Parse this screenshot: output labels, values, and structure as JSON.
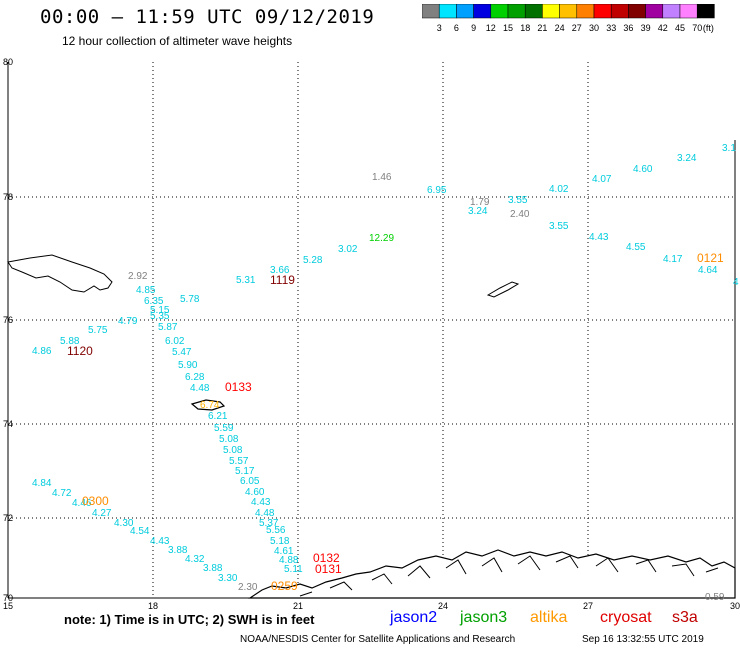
{
  "header": {
    "title": "00:00 — 11:59 UTC 09/12/2019",
    "subtitle": "12 hour collection of altimeter wave heights"
  },
  "color_scale": {
    "unit": "(ft)",
    "bins": [
      {
        "label": "3",
        "color": "#808080"
      },
      {
        "label": "6",
        "color": "#00e5ff"
      },
      {
        "label": "9",
        "color": "#00a0ff"
      },
      {
        "label": "12",
        "color": "#0000e0"
      },
      {
        "label": "15",
        "color": "#00d000"
      },
      {
        "label": "18",
        "color": "#00a000"
      },
      {
        "label": "21",
        "color": "#007000"
      },
      {
        "label": "24",
        "color": "#ffff00"
      },
      {
        "label": "27",
        "color": "#ffc000"
      },
      {
        "label": "30",
        "color": "#ff8000"
      },
      {
        "label": "33",
        "color": "#ff0000"
      },
      {
        "label": "36",
        "color": "#c00000"
      },
      {
        "label": "39",
        "color": "#800000"
      },
      {
        "label": "42",
        "color": "#a000a0"
      },
      {
        "label": "45",
        "color": "#c080ff"
      },
      {
        "label": "70",
        "color": "#ff80ff"
      },
      {
        "label": "",
        "color": "#000000"
      }
    ]
  },
  "axes": {
    "lat_labels": [
      "80",
      "78",
      "76",
      "74",
      "72",
      "70"
    ],
    "lon_labels": [
      "15",
      "18",
      "21",
      "24",
      "27",
      "30"
    ]
  },
  "observations": [
    {
      "t": "1.46",
      "c": "#808080"
    },
    {
      "t": "6.95",
      "c": "#00ccdd"
    },
    {
      "t": "1.79",
      "c": "#808080"
    },
    {
      "t": "3.55",
      "c": "#00ccdd"
    },
    {
      "t": "3.24",
      "c": "#00ccdd"
    },
    {
      "t": "2.40",
      "c": "#808080"
    },
    {
      "t": "4.02",
      "c": "#00ccdd"
    },
    {
      "t": "4.07",
      "c": "#00ccdd"
    },
    {
      "t": "4.60",
      "c": "#00ccdd"
    },
    {
      "t": "3.24",
      "c": "#00ccdd"
    },
    {
      "t": "3.1",
      "c": "#00ccdd"
    },
    {
      "t": "3.55",
      "c": "#00ccdd"
    },
    {
      "t": "4.43",
      "c": "#00ccdd"
    },
    {
      "t": "4.55",
      "c": "#00ccdd"
    },
    {
      "t": "4.17",
      "c": "#00ccdd"
    },
    {
      "t": "4.64",
      "c": "#00ccdd"
    },
    {
      "t": "4",
      "c": "#00ccdd"
    },
    {
      "t": "12.29",
      "c": "#00d000"
    },
    {
      "t": "3.02",
      "c": "#00ccdd"
    },
    {
      "t": "5.28",
      "c": "#00ccdd"
    },
    {
      "t": "3.66",
      "c": "#00ccdd"
    },
    {
      "t": "5.31",
      "c": "#00ccdd"
    },
    {
      "t": "2.92",
      "c": "#808080"
    },
    {
      "t": "4.85",
      "c": "#00ccdd"
    },
    {
      "t": "6.35",
      "c": "#00ccdd"
    },
    {
      "t": "5.78",
      "c": "#00ccdd"
    },
    {
      "t": "5.15",
      "c": "#00ccdd"
    },
    {
      "t": "4.79",
      "c": "#00ccdd"
    },
    {
      "t": "5.35",
      "c": "#00ccdd"
    },
    {
      "t": "5.75",
      "c": "#00ccdd"
    },
    {
      "t": "5.87",
      "c": "#00ccdd"
    },
    {
      "t": "5.88",
      "c": "#00ccdd"
    },
    {
      "t": "6.02",
      "c": "#00ccdd"
    },
    {
      "t": "4.86",
      "c": "#00ccdd"
    },
    {
      "t": "5.47",
      "c": "#00ccdd"
    },
    {
      "t": "5.90",
      "c": "#00ccdd"
    },
    {
      "t": "6.28",
      "c": "#00ccdd"
    },
    {
      "t": "4.48",
      "c": "#00ccdd"
    },
    {
      "t": "6.74",
      "c": "#ffb000"
    },
    {
      "t": "6.21",
      "c": "#00ccdd"
    },
    {
      "t": "5.59",
      "c": "#00ccdd"
    },
    {
      "t": "5.08",
      "c": "#00ccdd"
    },
    {
      "t": "5.08",
      "c": "#00ccdd"
    },
    {
      "t": "5.57",
      "c": "#00ccdd"
    },
    {
      "t": "5.17",
      "c": "#00ccdd"
    },
    {
      "t": "6.05",
      "c": "#00ccdd"
    },
    {
      "t": "4.60",
      "c": "#00ccdd"
    },
    {
      "t": "4.43",
      "c": "#00ccdd"
    },
    {
      "t": "4.48",
      "c": "#00ccdd"
    },
    {
      "t": "5.37",
      "c": "#00ccdd"
    },
    {
      "t": "5.56",
      "c": "#00ccdd"
    },
    {
      "t": "5.18",
      "c": "#00ccdd"
    },
    {
      "t": "4.61",
      "c": "#00ccdd"
    },
    {
      "t": "4.88",
      "c": "#00ccdd"
    },
    {
      "t": "5.11",
      "c": "#00ccdd"
    },
    {
      "t": "4.84",
      "c": "#00ccdd"
    },
    {
      "t": "4.72",
      "c": "#00ccdd"
    },
    {
      "t": "4.46",
      "c": "#00ccdd"
    },
    {
      "t": "4.27",
      "c": "#00ccdd"
    },
    {
      "t": "4.30",
      "c": "#00ccdd"
    },
    {
      "t": "4.54",
      "c": "#00ccdd"
    },
    {
      "t": "4.43",
      "c": "#00ccdd"
    },
    {
      "t": "3.88",
      "c": "#00ccdd"
    },
    {
      "t": "4.32",
      "c": "#00ccdd"
    },
    {
      "t": "3.88",
      "c": "#00ccdd"
    },
    {
      "t": "3.30",
      "c": "#00ccdd"
    },
    {
      "t": "2.30",
      "c": "#808080"
    },
    {
      "t": "0.59",
      "c": "#808080"
    }
  ],
  "pass_times": [
    {
      "t": "1119",
      "c": "#800000"
    },
    {
      "t": "1120",
      "c": "#800000"
    },
    {
      "t": "0133",
      "c": "#ff0000"
    },
    {
      "t": "0121",
      "c": "#ff8c00"
    },
    {
      "t": "0300",
      "c": "#ff8c00"
    },
    {
      "t": "0132",
      "c": "#ff0000"
    },
    {
      "t": "0131",
      "c": "#ff0000"
    },
    {
      "t": "0259",
      "c": "#ff8c00"
    }
  ],
  "footer": {
    "note": "note: 1) Time is in UTC; 2) SWH is in feet",
    "satellites": [
      {
        "name": "jason2",
        "color": "#0000ff"
      },
      {
        "name": "jason3",
        "color": "#00a000"
      },
      {
        "name": "altika",
        "color": "#ff9900"
      },
      {
        "name": "cryosat",
        "color": "#e00000"
      },
      {
        "name": "s3a",
        "color": "#c00000"
      }
    ],
    "credit": "NOAA/NESDIS Center for Satellite Applications and Research",
    "timestamp": "Sep 16 13:32:55 UTC 2019"
  }
}
